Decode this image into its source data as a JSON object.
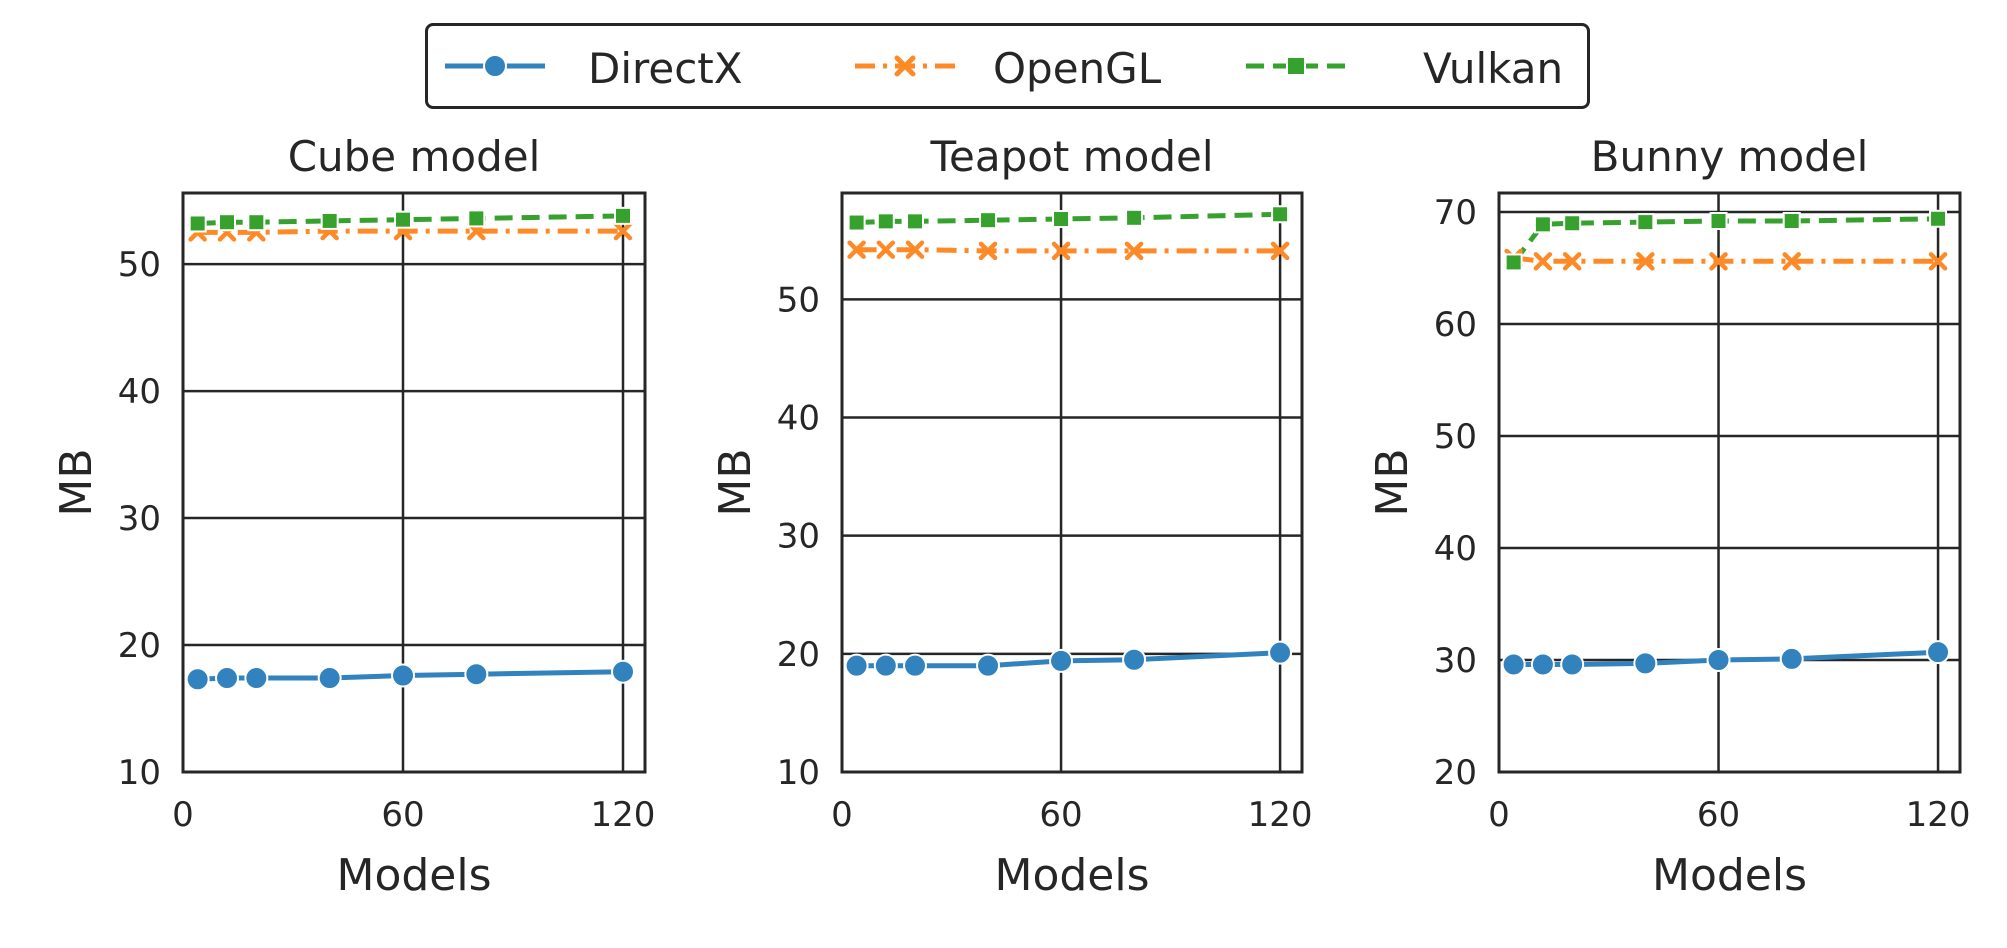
{
  "legend": {
    "items": [
      {
        "label": "DirectX",
        "color": "#3282bd",
        "marker": "circle",
        "dash": "solid"
      },
      {
        "label": "OpenGL",
        "color": "#fd8a27",
        "marker": "x",
        "dash": "dashdot"
      },
      {
        "label": "Vulkan",
        "color": "#37a12e",
        "marker": "square",
        "dash": "dashed"
      }
    ]
  },
  "chart_data": [
    {
      "type": "line",
      "title": "Cube model",
      "xlabel": "Models",
      "ylabel": "MB",
      "xticks": [
        0,
        60,
        120
      ],
      "yticks": [
        10,
        20,
        30,
        40,
        50
      ],
      "xlim": [
        0,
        126
      ],
      "ylim": [
        10,
        55.6
      ],
      "grid": true,
      "x": [
        4,
        12,
        20,
        40,
        60,
        80,
        120
      ],
      "series": [
        {
          "name": "DirectX",
          "values": [
            17.3,
            17.4,
            17.4,
            17.4,
            17.6,
            17.7,
            17.9
          ]
        },
        {
          "name": "OpenGL",
          "values": [
            52.5,
            52.5,
            52.5,
            52.6,
            52.6,
            52.6,
            52.6
          ]
        },
        {
          "name": "Vulkan",
          "values": [
            53.2,
            53.3,
            53.3,
            53.4,
            53.5,
            53.6,
            53.8
          ]
        }
      ]
    },
    {
      "type": "line",
      "title": "Teapot model",
      "xlabel": "Models",
      "ylabel": "MB",
      "xticks": [
        0,
        60,
        120
      ],
      "yticks": [
        10,
        20,
        30,
        40,
        50
      ],
      "xlim": [
        0,
        126
      ],
      "ylim": [
        10,
        59
      ],
      "grid": true,
      "x": [
        4,
        12,
        20,
        40,
        60,
        80,
        120
      ],
      "series": [
        {
          "name": "DirectX",
          "values": [
            19.0,
            19.0,
            19.0,
            19.0,
            19.4,
            19.5,
            20.1
          ]
        },
        {
          "name": "OpenGL",
          "values": [
            54.2,
            54.2,
            54.2,
            54.1,
            54.1,
            54.1,
            54.1
          ]
        },
        {
          "name": "Vulkan",
          "values": [
            56.5,
            56.6,
            56.6,
            56.7,
            56.8,
            56.9,
            57.2
          ]
        }
      ]
    },
    {
      "type": "line",
      "title": "Bunny model",
      "xlabel": "Models",
      "ylabel": "MB",
      "xticks": [
        0,
        60,
        120
      ],
      "yticks": [
        20,
        30,
        40,
        50,
        60,
        70
      ],
      "xlim": [
        0,
        126
      ],
      "ylim": [
        20,
        71.7
      ],
      "grid": true,
      "x": [
        4,
        12,
        20,
        40,
        60,
        80,
        120
      ],
      "series": [
        {
          "name": "DirectX",
          "values": [
            29.6,
            29.6,
            29.6,
            29.7,
            30.0,
            30.1,
            30.7
          ]
        },
        {
          "name": "OpenGL",
          "values": [
            65.9,
            65.6,
            65.6,
            65.6,
            65.6,
            65.6,
            65.6
          ]
        },
        {
          "name": "Vulkan",
          "values": [
            65.5,
            68.9,
            69.0,
            69.1,
            69.2,
            69.2,
            69.4
          ]
        }
      ]
    }
  ]
}
